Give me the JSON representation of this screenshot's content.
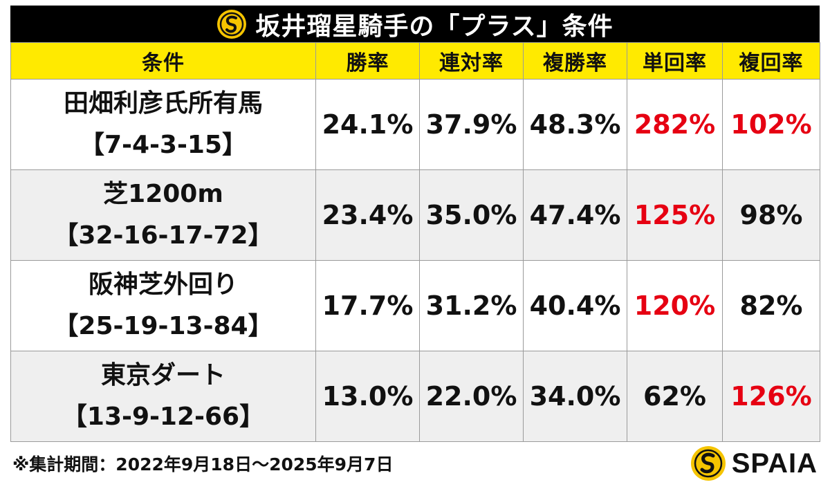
{
  "title": "坂井瑠星騎手の「プラス」条件",
  "header": {
    "condition": "条件",
    "win_rate": "勝率",
    "quinella_rate": "連対率",
    "place_rate": "複勝率",
    "win_return": "単回率",
    "place_return": "複回率"
  },
  "rows": [
    {
      "name": "田畑利彦氏所有馬",
      "record": "【7-4-3-15】",
      "win_rate": "24.1%",
      "quinella_rate": "37.9%",
      "place_rate": "48.3%",
      "win_return": "282%",
      "place_return": "102%"
    },
    {
      "name": "芝1200m",
      "record": "【32-16-17-72】",
      "win_rate": "23.4%",
      "quinella_rate": "35.0%",
      "place_rate": "47.4%",
      "win_return": "125%",
      "place_return": "98%"
    },
    {
      "name": "阪神芝外回り",
      "record": "【25-19-13-84】",
      "win_rate": "17.7%",
      "quinella_rate": "31.2%",
      "place_rate": "40.4%",
      "win_return": "120%",
      "place_return": "82%"
    },
    {
      "name": "東京ダート",
      "record": "【13-9-12-66】",
      "win_rate": "13.0%",
      "quinella_rate": "22.0%",
      "place_rate": "34.0%",
      "win_return": "62%",
      "place_return": "126%"
    }
  ],
  "footnote": "※集計期間：2022年9月18日～2025年9月7日",
  "brand": {
    "name": "SPAIA",
    "icon": "spaia-logo-icon"
  },
  "colors": {
    "title_bg": "#000000",
    "header_bg": "#ffea00",
    "highlight_text": "#e60012",
    "shaded_row": "#efefef",
    "logo_yellow": "#f5c400"
  }
}
